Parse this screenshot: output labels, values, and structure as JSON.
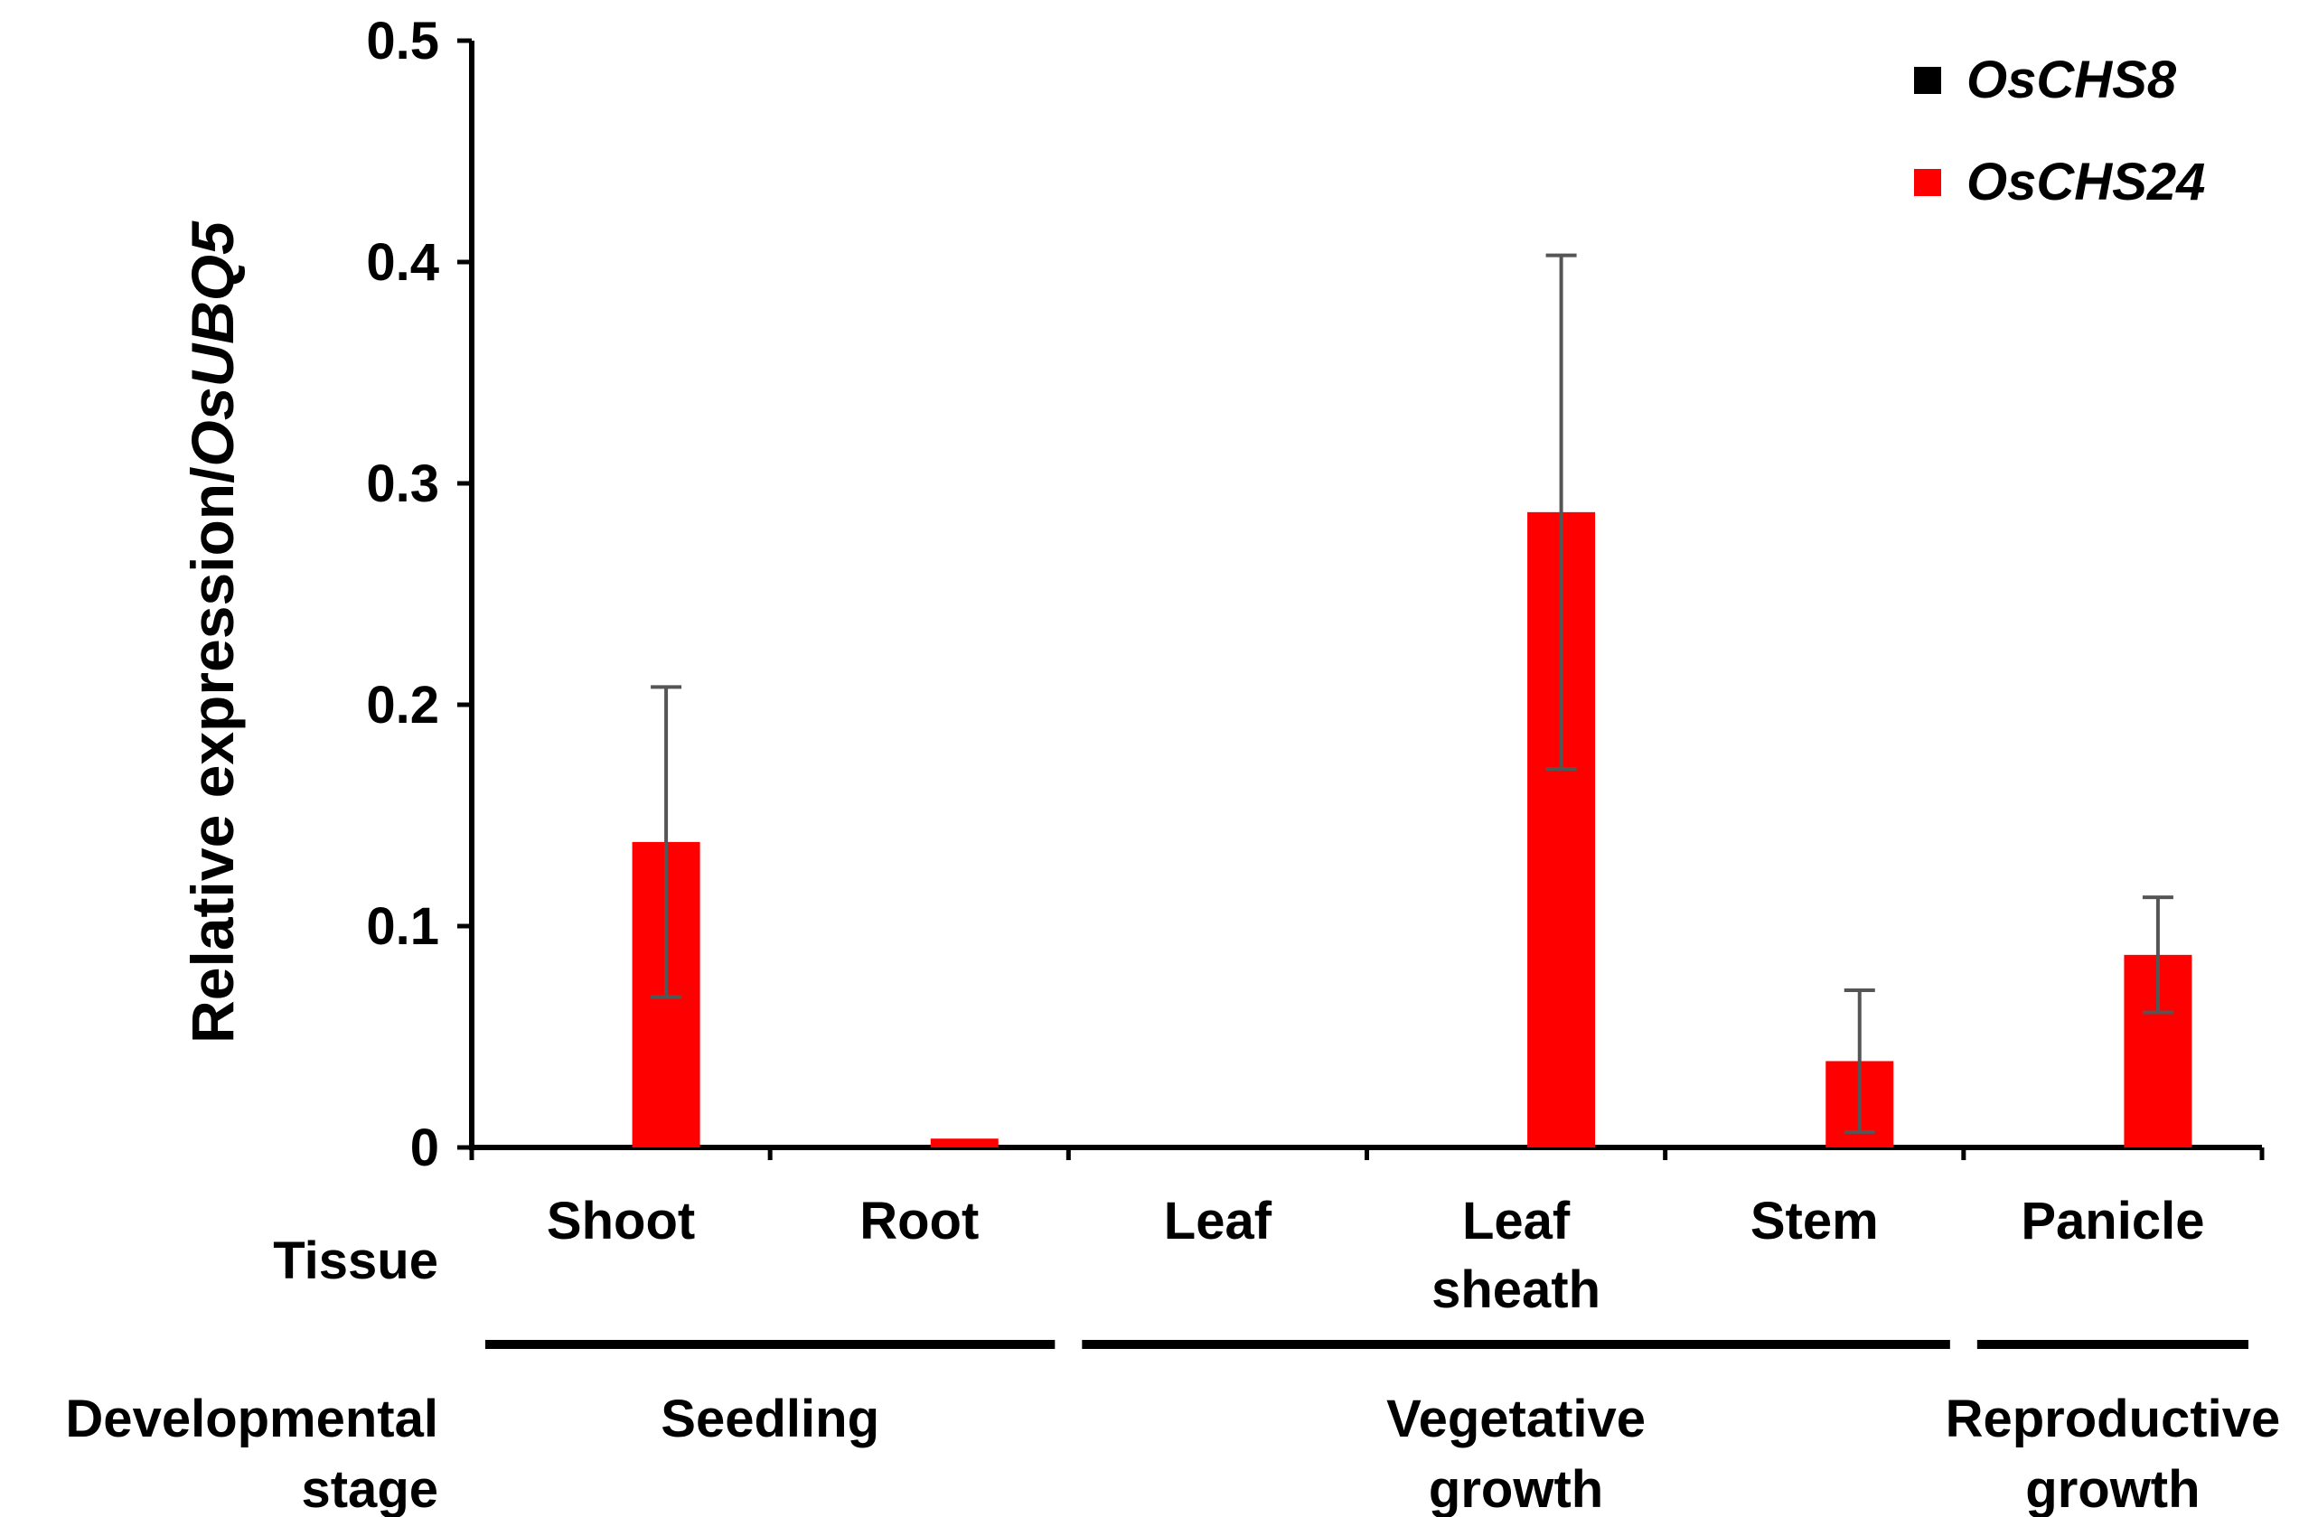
{
  "chart_data": {
    "type": "bar",
    "ylabel_prefix": "Relative expression/",
    "ylabel_gene": "OsUBQ5",
    "ylim": [
      0,
      0.5
    ],
    "ytick_labels": [
      "0",
      "0.1",
      "0.2",
      "0.3",
      "0.4",
      "0.5"
    ],
    "yticks": [
      0,
      0.1,
      0.2,
      0.3,
      0.4,
      0.5
    ],
    "row_labels": {
      "tissue": "Tissue",
      "stage_line1": "Developmental",
      "stage_line2": "stage"
    },
    "categories": [
      {
        "line1": "Shoot",
        "line2": ""
      },
      {
        "line1": "Root",
        "line2": ""
      },
      {
        "line1": "Leaf",
        "line2": ""
      },
      {
        "line1": "Leaf",
        "line2": "sheath"
      },
      {
        "line1": "Stem",
        "line2": ""
      },
      {
        "line1": "Panicle",
        "line2": ""
      }
    ],
    "stages": [
      {
        "line1": "Seedling",
        "line2": "",
        "from": 0,
        "to": 1
      },
      {
        "line1": "Vegetative",
        "line2": "growth",
        "from": 2,
        "to": 4
      },
      {
        "line1": "Reproductive",
        "line2": "growth",
        "from": 5,
        "to": 5
      }
    ],
    "series": [
      {
        "name": "OsCHS8",
        "color": "#000000",
        "values": [
          0,
          0,
          0,
          0,
          0,
          0
        ],
        "errors": [
          0,
          0,
          0,
          0,
          0,
          0
        ]
      },
      {
        "name": "OsCHS24",
        "color": "#ff0000",
        "values": [
          0.138,
          0.004,
          0,
          0.287,
          0.039,
          0.087
        ],
        "errors": [
          0.07,
          0,
          0,
          0.116,
          0.032,
          0.026
        ]
      }
    ],
    "legend_position": "top-right"
  }
}
